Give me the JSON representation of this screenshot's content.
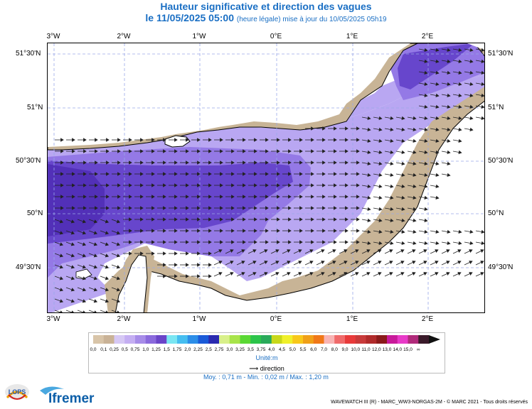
{
  "title": "Hauteur significative et direction des vagues",
  "subtitle": {
    "date": "le 11/05/2025 05:00",
    "note": "(heure légale) mise à jour du 10/05/2025 05h19"
  },
  "lon_labels": [
    "3°W",
    "2°W",
    "1°W",
    "0°E",
    "1°E",
    "2°E"
  ],
  "lat_labels": [
    "51°30'N",
    "51°N",
    "50°30'N",
    "50°N",
    "49°30'N"
  ],
  "legend": {
    "labels": [
      "0,0",
      "0,1",
      "0,25",
      "0,5",
      "0,75",
      "1,0",
      "1,25",
      "1,5",
      "1,75",
      "2,0",
      "2,25",
      "2,5",
      "2,75",
      "3,0",
      "3,25",
      "3,5",
      "3,75",
      "4,0",
      "4,5",
      "5,0",
      "5,5",
      "6,0",
      "7,0",
      "8,0",
      "9,0",
      "10,0",
      "11,0",
      "12,0",
      "13,0",
      "14,0",
      "15,0",
      "∞"
    ],
    "colors": [
      "#d8c4a8",
      "#c9b296",
      "#d6c8f4",
      "#c4aef2",
      "#a78ce8",
      "#8a69dc",
      "#6a44c8",
      "#7ae6f2",
      "#46bef0",
      "#2c8ee8",
      "#1a5ad8",
      "#2a2ab0",
      "#d8f08a",
      "#a8e44a",
      "#5ad834",
      "#2cc44a",
      "#2aaa5a",
      "#c8d81a",
      "#f0f02a",
      "#f8c81a",
      "#f0a018",
      "#f07818",
      "#f8b4b4",
      "#f06a6a",
      "#e83a3a",
      "#c83a3a",
      "#b02a2a",
      "#8a1a1a",
      "#c81a9a",
      "#e83ac8",
      "#b02a7a",
      "#3a1a2a"
    ],
    "unit": "Unité:m",
    "direction": "direction"
  },
  "stats": "Moy. : 0,71 m  -  Min. : 0,02 m / Max. : 1,20 m",
  "footer": {
    "lops": "LOPS",
    "ifremer": "Ifremer",
    "credits": "WAVEWATCH III (R) - MARC_WW3-NORGAS-2M - © MARC 2021 - Tous droits réservés"
  },
  "colors": {
    "land": "#c8b496",
    "wave_light": "#b9a7f2",
    "wave_mid": "#9479e6",
    "wave_dark": "#6746cc",
    "wave_darkest": "#5230b8",
    "title_blue": "#1a6fc4"
  }
}
